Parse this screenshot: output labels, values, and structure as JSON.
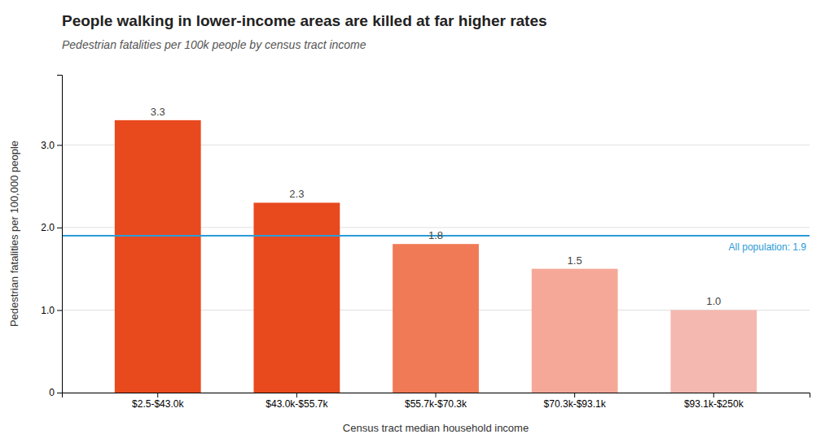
{
  "chart_data": {
    "type": "bar",
    "title": "People walking in lower-income areas are killed at far higher rates",
    "subtitle": "Pedestrian fatalities per 100k people by census tract income",
    "categories": [
      "$2.5-$43.0k",
      "$43.0k-$55.7k",
      "$55.7k-$70.3k",
      "$70.3k-$93.1k",
      "$93.1k-$250k"
    ],
    "values": [
      3.3,
      2.3,
      1.8,
      1.5,
      1.0
    ],
    "value_labels": [
      "3.3",
      "2.3",
      "1.8",
      "1.5",
      "1.0"
    ],
    "data_labels": true,
    "colors": [
      "#E8491D",
      "#E8491D",
      "#F07A55",
      "#F5A898",
      "#F5B8B0"
    ],
    "reference_line": {
      "value": 1.9,
      "label": "All population: 1.9",
      "color": "#2B9CD8"
    },
    "xlabel": "Census tract median household income",
    "ylabel": "Pedestrian fatalities per 100,000 people",
    "ylim": [
      0,
      3.85
    ],
    "yticks": [
      0,
      {
        "value": 1.0,
        "label": "1.0"
      },
      {
        "value": 2.0,
        "label": "2.0"
      },
      {
        "value": 3.0,
        "label": "3.0"
      }
    ],
    "grid": true
  }
}
